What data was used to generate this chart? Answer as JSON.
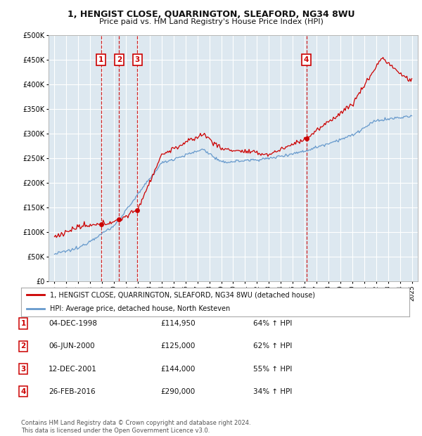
{
  "title": "1, HENGIST CLOSE, QUARRINGTON, SLEAFORD, NG34 8WU",
  "subtitle": "Price paid vs. HM Land Registry's House Price Index (HPI)",
  "legend_line1": "1, HENGIST CLOSE, QUARRINGTON, SLEAFORD, NG34 8WU (detached house)",
  "legend_line2": "HPI: Average price, detached house, North Kesteven",
  "footer": "Contains HM Land Registry data © Crown copyright and database right 2024.\nThis data is licensed under the Open Government Licence v3.0.",
  "transactions": [
    {
      "num": 1,
      "date": "04-DEC-1998",
      "price": "£114,950",
      "pct": "64% ↑ HPI",
      "year": 1998.92
    },
    {
      "num": 2,
      "date": "06-JUN-2000",
      "price": "£125,000",
      "pct": "62% ↑ HPI",
      "year": 2000.43
    },
    {
      "num": 3,
      "date": "12-DEC-2001",
      "price": "£144,000",
      "pct": "55% ↑ HPI",
      "year": 2001.95
    },
    {
      "num": 4,
      "date": "26-FEB-2016",
      "price": "£290,000",
      "pct": "34% ↑ HPI",
      "year": 2016.15
    }
  ],
  "transaction_prices": [
    114950,
    125000,
    144000,
    290000
  ],
  "ylim": [
    0,
    500000
  ],
  "yticks": [
    0,
    50000,
    100000,
    150000,
    200000,
    250000,
    300000,
    350000,
    400000,
    450000,
    500000
  ],
  "xlim": [
    1994.5,
    2025.5
  ],
  "red_color": "#cc0000",
  "blue_color": "#6699cc",
  "plot_bg": "#dde8f0",
  "grid_color": "#ffffff",
  "marker_y": 450000,
  "fig_width": 6.0,
  "fig_height": 6.2,
  "dpi": 100
}
